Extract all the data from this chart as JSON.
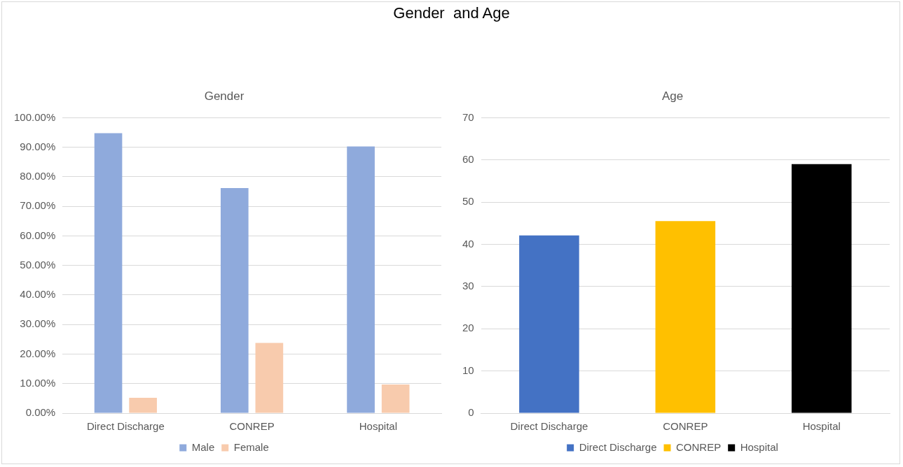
{
  "chart_data": [
    {
      "type": "bar",
      "title": "Gender",
      "annotations": [
        "Gender  and Age"
      ],
      "categories": [
        "Direct Discharge",
        "CONREP",
        "Hospital"
      ],
      "series": [
        {
          "name": "Male",
          "color": "#8faadc",
          "values": [
            94.8,
            76.2,
            90.3
          ]
        },
        {
          "name": "Female",
          "color": "#f8cbad",
          "values": [
            5.2,
            23.8,
            9.7
          ]
        }
      ],
      "ylim": [
        0,
        100
      ],
      "yticks": [
        {
          "value": 0,
          "label": "0.00%"
        },
        {
          "value": 10,
          "label": "10.00%"
        },
        {
          "value": 20,
          "label": "20.00%"
        },
        {
          "value": 30,
          "label": "30.00%"
        },
        {
          "value": 40,
          "label": "40.00%"
        },
        {
          "value": 50,
          "label": "50.00%"
        },
        {
          "value": 60,
          "label": "60.00%"
        },
        {
          "value": 70,
          "label": "70.00%"
        },
        {
          "value": 80,
          "label": "80.00%"
        },
        {
          "value": 90,
          "label": "90.00%"
        },
        {
          "value": 100,
          "label": "100.00%"
        }
      ],
      "grid": "y",
      "legend": "bottom"
    },
    {
      "type": "bar",
      "title": "Age",
      "categories": [
        "Direct Discharge",
        "CONREP",
        "Hospital"
      ],
      "series": [
        {
          "name": "Direct Discharge",
          "color": "#4472c4",
          "values": [
            42.1,
            null,
            null
          ]
        },
        {
          "name": "CONREP",
          "color": "#ffc000",
          "values": [
            null,
            45.5,
            null
          ]
        },
        {
          "name": "Hospital",
          "color": "#000000",
          "values": [
            null,
            null,
            59
          ]
        }
      ],
      "ylim": [
        0,
        70
      ],
      "yticks": [
        0,
        10,
        20,
        30,
        40,
        50,
        60,
        70
      ],
      "grid": "y",
      "legend": "bottom"
    }
  ]
}
